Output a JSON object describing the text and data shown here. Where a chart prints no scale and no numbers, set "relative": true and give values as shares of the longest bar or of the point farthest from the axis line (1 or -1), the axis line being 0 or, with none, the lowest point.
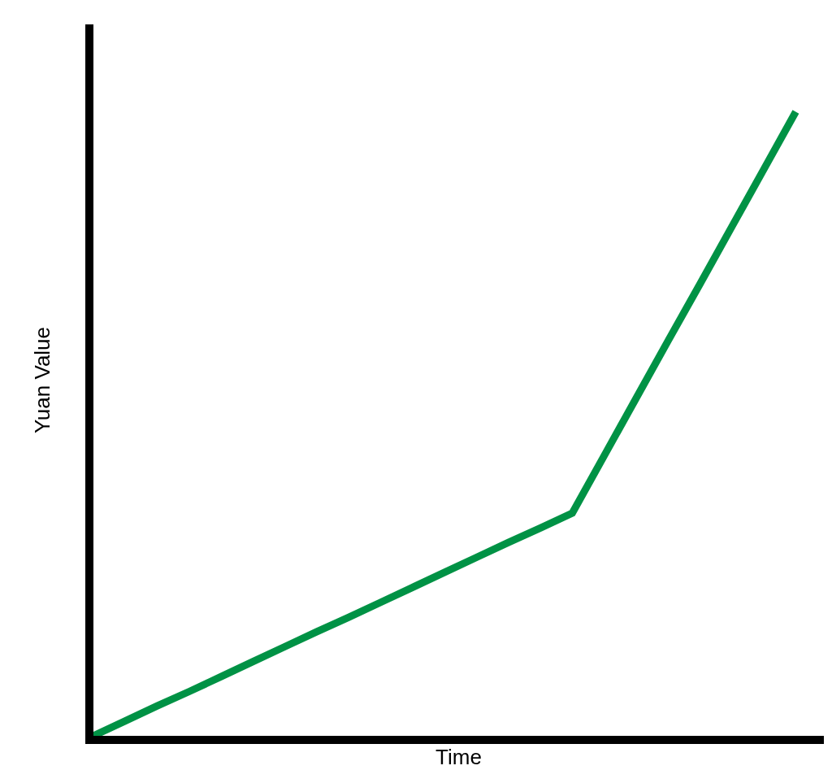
{
  "chart_data": {
    "type": "line",
    "relative": true,
    "xlabel": "Time",
    "ylabel": "Yuan Value",
    "categories": [
      null,
      null,
      null,
      null,
      null,
      null,
      null,
      null,
      null,
      null,
      null,
      null,
      null,
      null,
      null,
      null,
      null,
      null,
      null,
      null,
      null,
      null,
      null
    ],
    "series": [
      {
        "color": "#009245",
        "values": [
          0,
          0.024,
          0.048,
          0.071,
          0.095,
          0.119,
          0.143,
          0.167,
          0.19,
          0.214,
          0.238,
          0.262,
          0.286,
          0.31,
          0.333,
          0.357,
          0.449,
          0.541,
          0.633,
          0.724,
          0.816,
          0.908,
          1
        ]
      }
    ]
  }
}
